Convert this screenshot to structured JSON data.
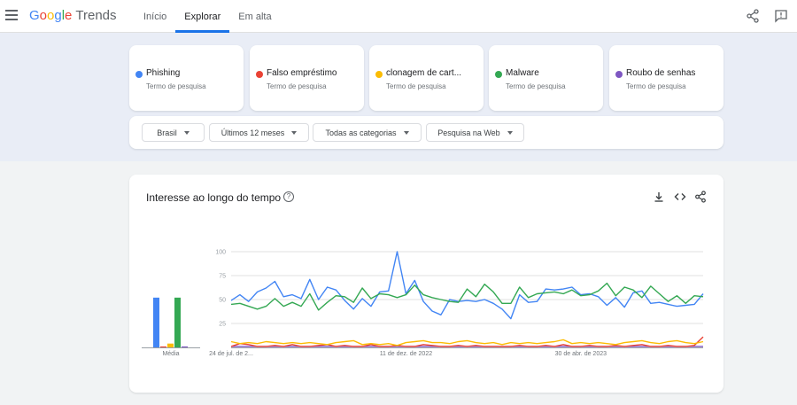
{
  "header": {
    "logo": {
      "google": "Google",
      "brand": "Trends"
    },
    "tabs": [
      {
        "label": "Início",
        "active": false
      },
      {
        "label": "Explorar",
        "active": true
      },
      {
        "label": "Em alta",
        "active": false
      }
    ],
    "icons": [
      "menu-icon",
      "share-icon",
      "feedback-icon"
    ]
  },
  "terms": [
    {
      "name": "Phishing",
      "sub": "Termo de pesquisa",
      "color": "#4285f4"
    },
    {
      "name": "Falso empréstimo",
      "sub": "Termo de pesquisa",
      "color": "#ea4335"
    },
    {
      "name": "clonagem de cart...",
      "sub": "Termo de pesquisa",
      "color": "#fbbc04"
    },
    {
      "name": "Malware",
      "sub": "Termo de pesquisa",
      "color": "#34a853"
    },
    {
      "name": "Roubo de senhas",
      "sub": "Termo de pesquisa",
      "color": "#7e57c2"
    }
  ],
  "filters": {
    "region": "Brasil",
    "period": "Últimos 12 meses",
    "category": "Todas as categorias",
    "search_type": "Pesquisa na Web"
  },
  "chart_card": {
    "title": "Interesse ao longo do tempo",
    "icons": [
      "help-icon",
      "download-icon",
      "embed-icon",
      "share-icon"
    ]
  },
  "chart_data": {
    "type": "line",
    "ylim": [
      0,
      100
    ],
    "y_ticks": [
      100,
      75,
      50,
      25
    ],
    "x_tick_labels": [
      "24 de jul. de 2...",
      "11 de dez. de 2022",
      "30 de abr. de 2023"
    ],
    "x_tick_index": [
      0,
      20,
      40
    ],
    "average_label": "Média",
    "averages": [
      {
        "name": "Phishing",
        "value": 52,
        "color": "#4285f4"
      },
      {
        "name": "Falso empréstimo",
        "value": 1,
        "color": "#ea4335"
      },
      {
        "name": "clonagem de cart...",
        "value": 4,
        "color": "#fbbc04"
      },
      {
        "name": "Malware",
        "value": 52,
        "color": "#34a853"
      },
      {
        "name": "Roubo de senhas",
        "value": 1,
        "color": "#7e57c2"
      }
    ],
    "series": [
      {
        "name": "Phishing",
        "color": "#4285f4",
        "values": [
          49,
          55,
          48,
          58,
          62,
          69,
          53,
          55,
          51,
          71,
          50,
          63,
          60,
          49,
          40,
          51,
          43,
          58,
          59,
          100,
          56,
          70,
          48,
          38,
          34,
          50,
          48,
          49,
          48,
          50,
          46,
          40,
          30,
          55,
          47,
          48,
          61,
          60,
          61,
          63,
          55,
          56,
          53,
          44,
          52,
          42,
          57,
          59,
          46,
          47,
          45,
          43,
          44,
          45,
          56
        ]
      },
      {
        "name": "Falso empréstimo",
        "color": "#ea4335",
        "values": [
          1,
          4,
          3,
          1,
          1,
          2,
          1,
          3,
          1,
          1,
          2,
          3,
          1,
          2,
          1,
          1,
          3,
          1,
          1,
          2,
          1,
          1,
          3,
          2,
          1,
          1,
          2,
          1,
          2,
          1,
          1,
          1,
          1,
          2,
          1,
          1,
          2,
          1,
          3,
          1,
          1,
          2,
          1,
          1,
          2,
          1,
          2,
          3,
          1,
          1,
          2,
          1,
          1,
          2,
          11
        ]
      },
      {
        "name": "clonagem de cart...",
        "color": "#fbbc04",
        "values": [
          6,
          4,
          5,
          4,
          6,
          5,
          4,
          5,
          4,
          5,
          4,
          3,
          5,
          6,
          7,
          3,
          4,
          3,
          4,
          2,
          5,
          6,
          7,
          5,
          5,
          4,
          6,
          7,
          5,
          4,
          5,
          3,
          5,
          4,
          5,
          4,
          5,
          6,
          8,
          4,
          5,
          4,
          5,
          4,
          3,
          5,
          6,
          7,
          5,
          4,
          6,
          7,
          5,
          4,
          6
        ]
      },
      {
        "name": "Malware",
        "color": "#34a853",
        "values": [
          45,
          46,
          43,
          40,
          43,
          51,
          43,
          47,
          43,
          56,
          39,
          47,
          54,
          53,
          47,
          62,
          51,
          56,
          55,
          52,
          55,
          65,
          55,
          52,
          50,
          48,
          47,
          61,
          53,
          66,
          58,
          46,
          46,
          63,
          52,
          56,
          57,
          58,
          56,
          60,
          54,
          55,
          59,
          67,
          54,
          63,
          60,
          52,
          64,
          56,
          48,
          54,
          46,
          54,
          53
        ]
      },
      {
        "name": "Roubo de senhas",
        "color": "#7e57c2",
        "values": [
          1,
          1,
          1,
          1,
          1,
          1,
          1,
          1,
          1,
          1,
          1,
          1,
          1,
          1,
          1,
          1,
          1,
          1,
          1,
          1,
          1,
          1,
          1,
          1,
          1,
          1,
          1,
          1,
          1,
          1,
          1,
          1,
          1,
          1,
          1,
          1,
          1,
          1,
          1,
          1,
          1,
          1,
          1,
          1,
          1,
          1,
          1,
          1,
          1,
          1,
          1,
          1,
          1,
          1,
          1
        ]
      }
    ]
  }
}
